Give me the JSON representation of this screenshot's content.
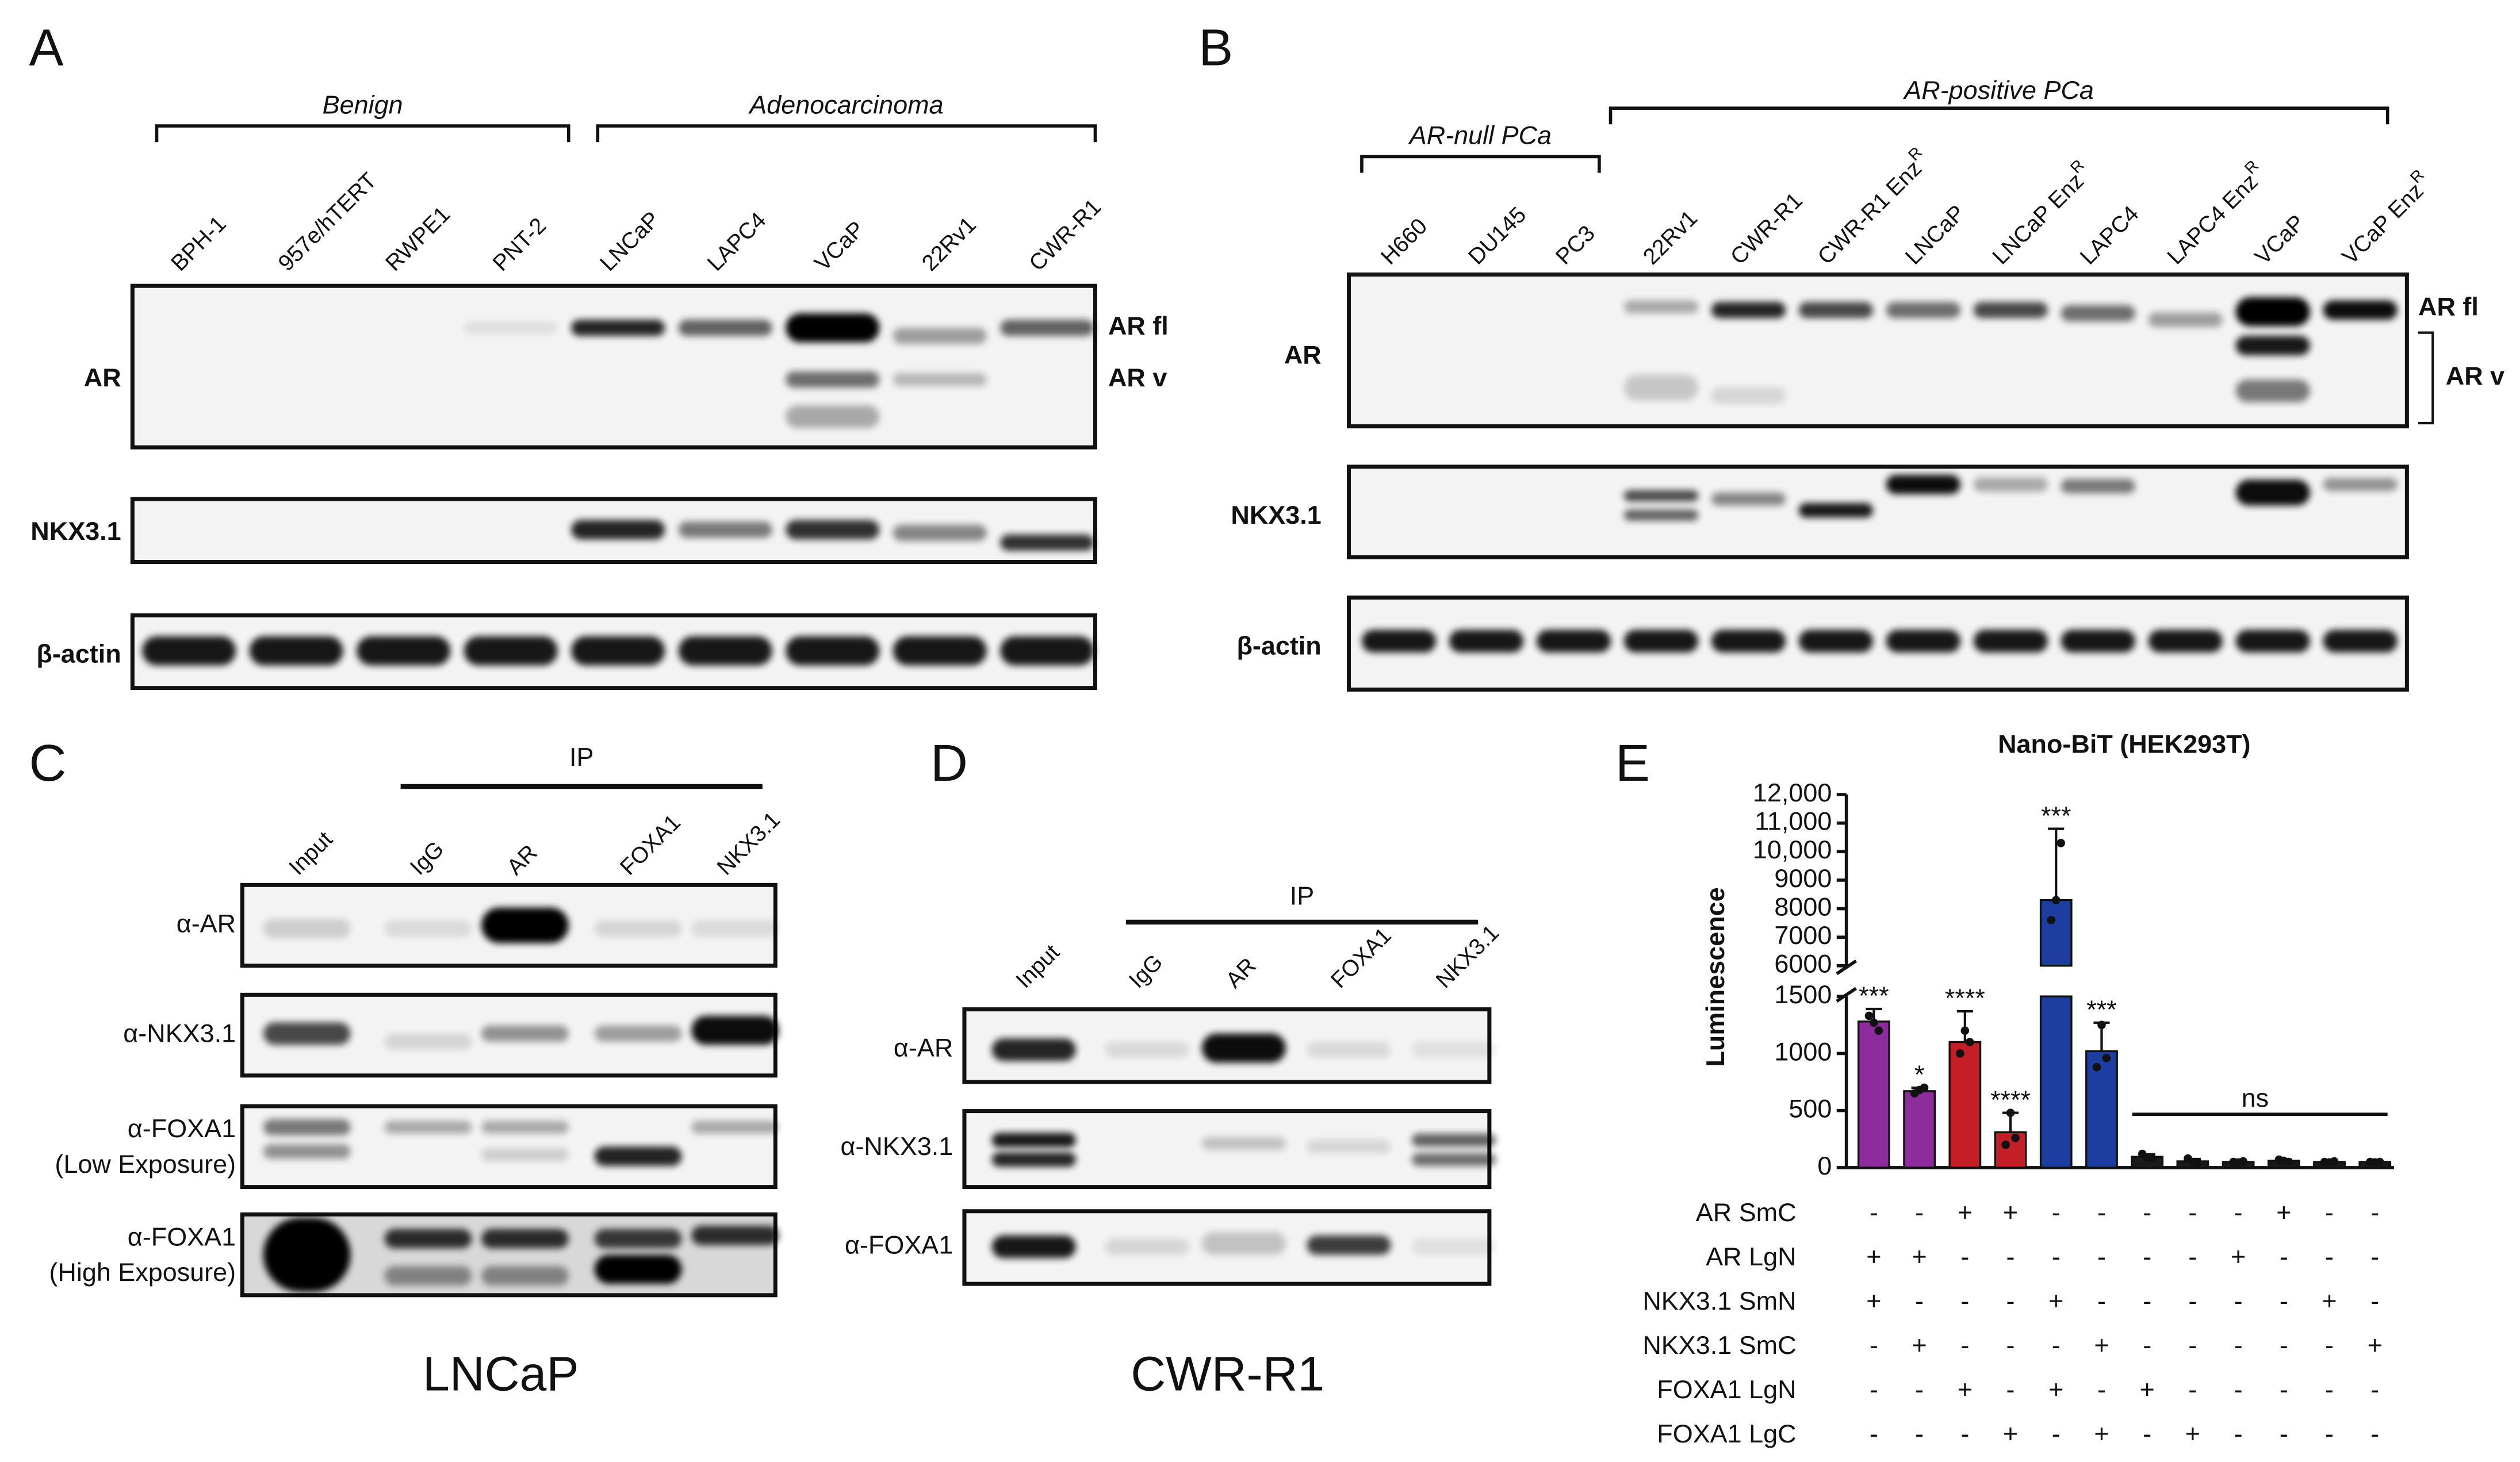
{
  "panel_A": {
    "letter": "A",
    "groups": [
      "Benign",
      "Adenocarcinoma"
    ],
    "lanes": [
      "BPH-1",
      "957e/hTERT",
      "RWPE1",
      "PNT-2",
      "LNCaP",
      "LAPC4",
      "VCaP",
      "22Rv1",
      "CWR-R1"
    ],
    "rows": [
      "AR",
      "NKX3.1",
      "β-actin"
    ],
    "band_labels": [
      "AR fl",
      "AR v"
    ]
  },
  "panel_B": {
    "letter": "B",
    "groups": [
      "AR-null PCa",
      "AR-positive PCa"
    ],
    "lanes": [
      "H660",
      "DU145",
      "PC3",
      "22Rv1",
      "CWR-R1",
      {
        "text": "CWR-R1 Enz",
        "sup": "R"
      },
      "LNCaP",
      {
        "text": "LNCaP Enz",
        "sup": "R"
      },
      "LAPC4",
      {
        "text": "LAPC4 Enz",
        "sup": "R"
      },
      "VCaP",
      {
        "text": "VCaP Enz",
        "sup": "R"
      }
    ],
    "rows": [
      "AR",
      "NKX3.1",
      "β-actin"
    ],
    "band_labels": [
      "AR fl",
      "AR v"
    ]
  },
  "panel_C": {
    "letter": "C",
    "ip_label": "IP",
    "lanes": [
      "Input",
      "IgG",
      "AR",
      "FOXA1",
      "NKX3.1"
    ],
    "rows": [
      [
        "α-AR"
      ],
      [
        "α-NKX3.1"
      ],
      [
        "α-FOXA1",
        "(Low Exposure)"
      ],
      [
        "α-FOXA1",
        "(High Exposure)"
      ]
    ],
    "cell_line": "LNCaP"
  },
  "panel_D": {
    "letter": "D",
    "ip_label": "IP",
    "lanes": [
      "Input",
      "IgG",
      "AR",
      "FOXA1",
      "NKX3.1"
    ],
    "rows": [
      [
        "α-AR"
      ],
      [
        "α-NKX3.1"
      ],
      [
        "α-FOXA1"
      ]
    ],
    "cell_line": "CWR-R1"
  },
  "panel_E": {
    "letter": "E"
  },
  "chart_data": {
    "type": "bar",
    "title": "Nano-BiT (HEK293T)",
    "y_label": "Luminescence",
    "values": [
      1280,
      670,
      1100,
      310,
      8300,
      1020,
      95,
      55,
      50,
      60,
      50,
      50
    ],
    "errors": [
      110,
      30,
      270,
      170,
      2500,
      250,
      20,
      20,
      10,
      10,
      10,
      10
    ],
    "points": [
      [
        1330,
        1270,
        1200
      ],
      [
        650,
        680,
        700
      ],
      [
        1000,
        1200,
        1100
      ],
      [
        200,
        480,
        260
      ],
      [
        7600,
        8300,
        10300
      ],
      [
        880,
        1250,
        960
      ],
      [
        120,
        90,
        80
      ],
      [
        80,
        50,
        40
      ],
      [
        50,
        45,
        55
      ],
      [
        70,
        60,
        50
      ],
      [
        50,
        45,
        55
      ],
      [
        50,
        45,
        50
      ]
    ],
    "colors": [
      "#8e2c9e",
      "#8e2c9e",
      "#c41e26",
      "#c41e26",
      "#1d3ea0",
      "#1d3ea0",
      "#1a1a1a",
      "#1a1a1a",
      "#1a1a1a",
      "#1a1a1a",
      "#1a1a1a",
      "#1a1a1a"
    ],
    "significance": [
      "***",
      "*",
      "****",
      "****",
      "***",
      "***",
      null,
      null,
      null,
      null,
      null,
      null
    ],
    "ns_label": "ns",
    "ylim": [
      0,
      1500
    ],
    "yticks": [
      0,
      500,
      1000,
      1500
    ],
    "ylim_upper": [
      6000,
      12000
    ],
    "yticks_upper": [
      6000,
      7000,
      8000,
      9000,
      {
        "value": 10000,
        "label": "10,000"
      },
      {
        "value": 11000,
        "label": "11,000"
      },
      {
        "value": 12000,
        "label": "12,000"
      }
    ],
    "axis_break": true,
    "conditions": [
      {
        "name": "AR SmC",
        "marks": [
          "-",
          "-",
          "+",
          "+",
          "-",
          "-",
          "-",
          "-",
          "-",
          "+",
          "-",
          "-"
        ]
      },
      {
        "name": "AR LgN",
        "marks": [
          "+",
          "+",
          "-",
          "-",
          "-",
          "-",
          "-",
          "-",
          "+",
          "-",
          "-",
          "-"
        ]
      },
      {
        "name": "NKX3.1 SmN",
        "marks": [
          "+",
          "-",
          "-",
          "-",
          "+",
          "-",
          "-",
          "-",
          "-",
          "-",
          "+",
          "-"
        ]
      },
      {
        "name": "NKX3.1 SmC",
        "marks": [
          "-",
          "+",
          "-",
          "-",
          "-",
          "+",
          "-",
          "-",
          "-",
          "-",
          "-",
          "+"
        ]
      },
      {
        "name": "FOXA1 LgN",
        "marks": [
          "-",
          "-",
          "+",
          "-",
          "+",
          "-",
          "+",
          "-",
          "-",
          "-",
          "-",
          "-"
        ]
      },
      {
        "name": "FOXA1 LgC",
        "marks": [
          "-",
          "-",
          "-",
          "+",
          "-",
          "+",
          "-",
          "+",
          "-",
          "-",
          "-",
          "-"
        ]
      }
    ]
  }
}
